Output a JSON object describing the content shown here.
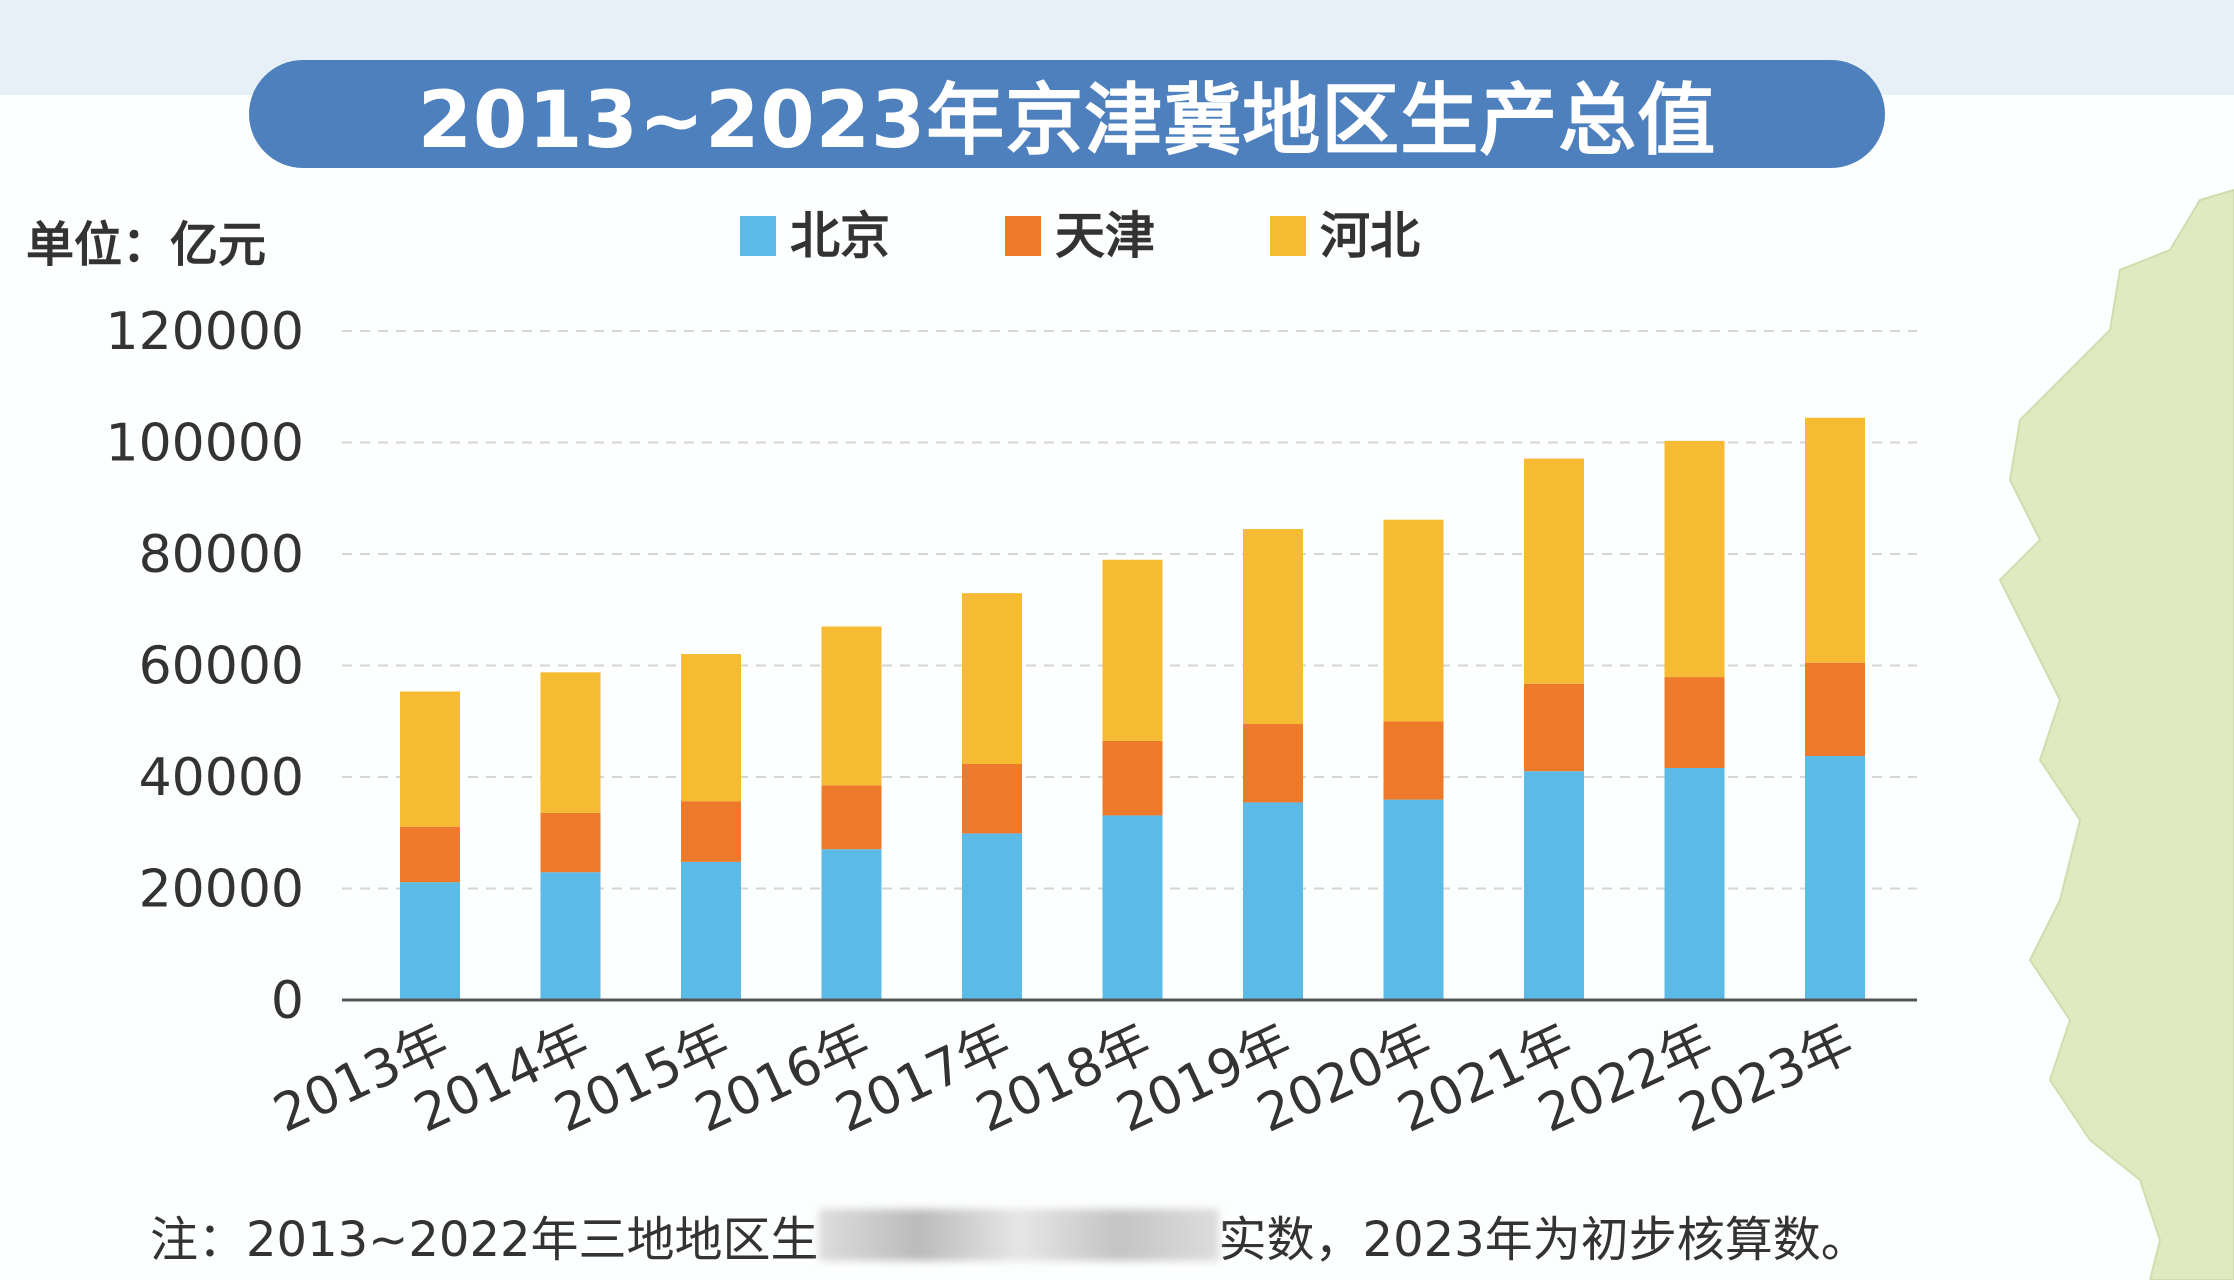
{
  "chart_data": {
    "type": "bar",
    "stacked": true,
    "title": "2013~2023年京津冀地区生产总值",
    "unit_label": "单位：亿元",
    "categories": [
      "2013年",
      "2014年",
      "2015年",
      "2016年",
      "2017年",
      "2018年",
      "2019年",
      "2020年",
      "2021年",
      "2022年",
      "2023年"
    ],
    "series": [
      {
        "name": "北京",
        "color": "#5bbbe6",
        "values": [
          21135,
          22926,
          24779,
          27041,
          29883,
          33106,
          35445,
          35943,
          41046,
          41611,
          43761
        ]
      },
      {
        "name": "天津",
        "color": "#ec7a2a",
        "values": [
          9945,
          10640,
          10879,
          11477,
          12451,
          13363,
          14055,
          14008,
          15685,
          16311,
          16737
        ]
      },
      {
        "name": "河北",
        "color": "#f6bb32",
        "values": [
          24259,
          25209,
          26398,
          28474,
          30640,
          32495,
          34978,
          36207,
          40391,
          42370,
          43944
        ]
      }
    ],
    "yticks": [
      "0",
      "20000",
      "40000",
      "60000",
      "80000",
      "100000",
      "120000"
    ],
    "ylim": [
      0,
      120000
    ],
    "grid": true,
    "legend_position": "top-center"
  },
  "footer": {
    "note_before": "注：2013~2022年三地地区生",
    "note_after": "实数，2023年为初步核算数。"
  }
}
